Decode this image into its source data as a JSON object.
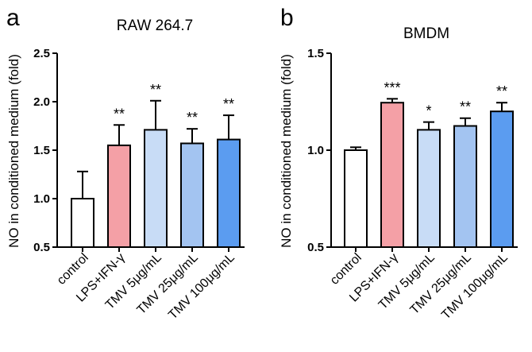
{
  "chart_data": [
    {
      "type": "bar",
      "panel": "a",
      "title": "RAW 264.7",
      "ylabel": "NO in conditioned medium (fold)",
      "xlabel": "",
      "ylim": [
        0.5,
        2.5
      ],
      "yticks": [
        "0.5",
        "1.0",
        "1.5",
        "2.0",
        "2.5"
      ],
      "categories": [
        "control",
        "LPS+IFN-γ",
        "TMV 5μg/mL",
        "TMV 25μg/mL",
        "TMV 100μg/mL"
      ],
      "values": [
        1.0,
        1.55,
        1.71,
        1.57,
        1.61
      ],
      "errors": [
        0.28,
        0.21,
        0.3,
        0.15,
        0.25
      ],
      "colors": [
        "#ffffff",
        "#f4a0a6",
        "#c8dcf6",
        "#a3c4f1",
        "#5b9cf0"
      ],
      "significance": [
        "",
        "**",
        "**",
        "**",
        "**"
      ]
    },
    {
      "type": "bar",
      "panel": "b",
      "title": "BMDM",
      "ylabel": "NO in conditioned medium (fold)",
      "xlabel": "",
      "ylim": [
        0.5,
        1.5
      ],
      "yticks": [
        "0.5",
        "1.0",
        "1.5"
      ],
      "categories": [
        "control",
        "LPS+IFN-γ",
        "TMV 5μg/mL",
        "TMV 25μg/mL",
        "TMV 100μg/mL"
      ],
      "values": [
        1.0,
        1.245,
        1.105,
        1.125,
        1.2
      ],
      "errors": [
        0.015,
        0.02,
        0.04,
        0.04,
        0.045
      ],
      "colors": [
        "#ffffff",
        "#f4a0a6",
        "#c8dcf6",
        "#a3c4f1",
        "#5b9cf0"
      ],
      "significance": [
        "",
        "***",
        "*",
        "**",
        "**"
      ]
    }
  ]
}
